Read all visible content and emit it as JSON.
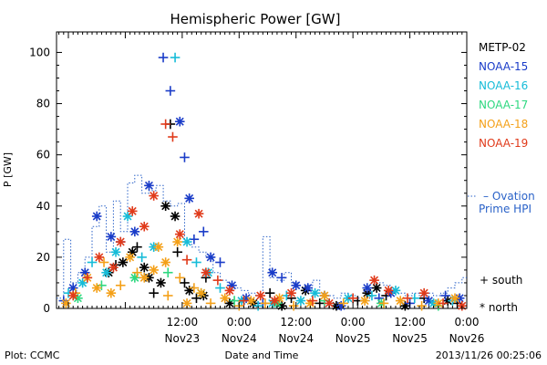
{
  "chart_data": {
    "type": "scatter",
    "title": "Hemispheric Power [GW]",
    "ylabel": "P [GW]",
    "xlabel": "Date and Time",
    "ylim": [
      0,
      108
    ],
    "yticks": [
      0,
      20,
      40,
      60,
      80,
      100
    ],
    "xlim": [
      -14.5,
      72
    ],
    "xticks": [
      {
        "x": 12,
        "time": "12:00",
        "date": "Nov23"
      },
      {
        "x": 24,
        "time": "0:00",
        "date": "Nov24"
      },
      {
        "x": 36,
        "time": "12:00",
        "date": "Nov24"
      },
      {
        "x": 48,
        "time": "0:00",
        "date": "Nov25"
      },
      {
        "x": 60,
        "time": "12:00",
        "date": "Nov25"
      },
      {
        "x": 72,
        "time": "0:00",
        "date": "Nov26"
      }
    ],
    "legend": [
      {
        "name": "METP-02",
        "color": "#000000"
      },
      {
        "name": "NOAA-15",
        "color": "#1a3cc8"
      },
      {
        "name": "NOAA-16",
        "color": "#16bcd8"
      },
      {
        "name": "NOAA-17",
        "color": "#2ed880"
      },
      {
        "name": "NOAA-18",
        "color": "#f4a018"
      },
      {
        "name": "NOAA-19",
        "color": "#e03a1a"
      }
    ],
    "ovation_label": [
      "Ovation",
      "Prime HPI"
    ],
    "ovation_color": "#2a62c8",
    "hemisphere_legend": [
      {
        "symbol": "+",
        "label": "south"
      },
      {
        "symbol": "*",
        "label": "north"
      }
    ],
    "series": [
      {
        "name": "METP-02",
        "color": "#000000",
        "points": [
          [
            -3.5,
            14,
            "*"
          ],
          [
            -2,
            17,
            "+"
          ],
          [
            -0.5,
            18,
            "*"
          ],
          [
            1.5,
            22,
            "*"
          ],
          [
            2.5,
            24,
            "+"
          ],
          [
            4,
            16,
            "*"
          ],
          [
            5,
            12,
            "*"
          ],
          [
            6,
            6,
            "+"
          ],
          [
            7.5,
            10,
            "*"
          ],
          [
            8.5,
            40,
            "*"
          ],
          [
            9.5,
            72,
            "+"
          ],
          [
            10.5,
            36,
            "*"
          ],
          [
            11,
            22,
            "+"
          ],
          [
            12.5,
            10,
            "+"
          ],
          [
            13.5,
            7,
            "*"
          ],
          [
            15,
            4,
            "+"
          ],
          [
            16.5,
            5,
            "*"
          ],
          [
            17,
            12,
            "+"
          ],
          [
            22,
            2,
            "*"
          ],
          [
            27,
            2,
            "*"
          ],
          [
            30.5,
            6,
            "+"
          ],
          [
            33,
            1,
            "*"
          ],
          [
            35,
            4,
            "+"
          ],
          [
            38,
            7,
            "*"
          ],
          [
            41,
            2,
            "+"
          ],
          [
            44.5,
            1,
            "*"
          ],
          [
            49,
            3,
            "+"
          ],
          [
            51,
            6,
            "*"
          ],
          [
            53,
            8,
            "*"
          ],
          [
            55,
            5,
            "+"
          ],
          [
            59,
            1,
            "*"
          ],
          [
            63,
            4,
            "+"
          ],
          [
            68,
            3,
            "*"
          ],
          [
            70,
            2,
            "+"
          ]
        ]
      },
      {
        "name": "NOAA-15",
        "color": "#1a3cc8",
        "points": [
          [
            -13,
            3,
            "+"
          ],
          [
            -11,
            8,
            "*"
          ],
          [
            -8.5,
            14,
            "*"
          ],
          [
            -6,
            36,
            "*"
          ],
          [
            -3,
            28,
            "*"
          ],
          [
            -1,
            26,
            "+"
          ],
          [
            2,
            30,
            "*"
          ],
          [
            5,
            48,
            "*"
          ],
          [
            8,
            98,
            "+"
          ],
          [
            9.5,
            85,
            "+"
          ],
          [
            11.5,
            73,
            "*"
          ],
          [
            12.5,
            59,
            "+"
          ],
          [
            13.5,
            43,
            "*"
          ],
          [
            14.5,
            27,
            "+"
          ],
          [
            16.5,
            30,
            "+"
          ],
          [
            18,
            20,
            "*"
          ],
          [
            20,
            18,
            "+"
          ],
          [
            22.5,
            9,
            "*"
          ],
          [
            25.5,
            4,
            "*"
          ],
          [
            29,
            2,
            "+"
          ],
          [
            31,
            14,
            "*"
          ],
          [
            33,
            12,
            "+"
          ],
          [
            36,
            9,
            "*"
          ],
          [
            38.5,
            8,
            "*"
          ],
          [
            42,
            5,
            "+"
          ],
          [
            45.5,
            1,
            "*"
          ],
          [
            51,
            8,
            "*"
          ],
          [
            53.5,
            4,
            "+"
          ],
          [
            56,
            6,
            "*"
          ],
          [
            60,
            2,
            "+"
          ],
          [
            64,
            3,
            "*"
          ],
          [
            67.5,
            5,
            "+"
          ],
          [
            70.5,
            4,
            "*"
          ]
        ]
      },
      {
        "name": "NOAA-16",
        "color": "#16bcd8",
        "points": [
          [
            -12,
            6,
            "+"
          ],
          [
            -9,
            10,
            "*"
          ],
          [
            -7,
            18,
            "+"
          ],
          [
            -4,
            14,
            "*"
          ],
          [
            -2,
            22,
            "*"
          ],
          [
            0.5,
            36,
            "*"
          ],
          [
            3.5,
            20,
            "+"
          ],
          [
            6,
            24,
            "*"
          ],
          [
            10.5,
            98,
            "+"
          ],
          [
            13,
            26,
            "*"
          ],
          [
            15,
            18,
            "+"
          ],
          [
            17.5,
            14,
            "*"
          ],
          [
            20,
            8,
            "+"
          ],
          [
            24.5,
            3,
            "*"
          ],
          [
            28,
            1,
            "+"
          ],
          [
            31,
            2,
            "*"
          ],
          [
            34,
            5,
            "+"
          ],
          [
            37,
            3,
            "*"
          ],
          [
            40,
            6,
            "*"
          ],
          [
            43,
            2,
            "+"
          ],
          [
            47,
            4,
            "*"
          ],
          [
            52,
            5,
            "+"
          ],
          [
            57,
            7,
            "*"
          ],
          [
            61,
            4,
            "+"
          ],
          [
            65,
            2,
            "*"
          ],
          [
            69,
            3,
            "+"
          ]
        ]
      },
      {
        "name": "NOAA-17",
        "color": "#2ed880",
        "points": [
          [
            -10,
            4,
            "*"
          ],
          [
            -5,
            9,
            "+"
          ],
          [
            2,
            12,
            "*"
          ],
          [
            9,
            14,
            "+"
          ],
          [
            16,
            6,
            "*"
          ],
          [
            23,
            3,
            "+"
          ],
          [
            32,
            2,
            "*"
          ],
          [
            42,
            3,
            "+"
          ],
          [
            54,
            2,
            "*"
          ],
          [
            66,
            1,
            "+"
          ]
        ]
      },
      {
        "name": "NOAA-18",
        "color": "#f4a018",
        "points": [
          [
            -12.5,
            2,
            "*"
          ],
          [
            -10.5,
            6,
            "+"
          ],
          [
            -8,
            12,
            "*"
          ],
          [
            -6,
            8,
            "*"
          ],
          [
            -4.5,
            18,
            "+"
          ],
          [
            -3,
            6,
            "*"
          ],
          [
            -1,
            9,
            "+"
          ],
          [
            1,
            20,
            "*"
          ],
          [
            2.5,
            14,
            "+"
          ],
          [
            4,
            12,
            "*"
          ],
          [
            6,
            15,
            "*"
          ],
          [
            7,
            24,
            "*"
          ],
          [
            8.5,
            18,
            "*"
          ],
          [
            9,
            5,
            "+"
          ],
          [
            11,
            26,
            "*"
          ],
          [
            11.5,
            12,
            "+"
          ],
          [
            13,
            2,
            "*"
          ],
          [
            14.5,
            8,
            "+"
          ],
          [
            16,
            6,
            "*"
          ],
          [
            18,
            2,
            "+"
          ],
          [
            21,
            4,
            "*"
          ],
          [
            24,
            1,
            "+"
          ],
          [
            26.5,
            3,
            "*"
          ],
          [
            29.5,
            2,
            "+"
          ],
          [
            32.5,
            4,
            "*"
          ],
          [
            35.5,
            1,
            "+"
          ],
          [
            39,
            2,
            "*"
          ],
          [
            42,
            5,
            "*"
          ],
          [
            46,
            2,
            "+"
          ],
          [
            50.5,
            3,
            "*"
          ],
          [
            54.5,
            2,
            "+"
          ],
          [
            58,
            3,
            "*"
          ],
          [
            62.5,
            1,
            "+"
          ],
          [
            66,
            2,
            "*"
          ],
          [
            69.5,
            4,
            "*"
          ]
        ]
      },
      {
        "name": "NOAA-19",
        "color": "#e03a1a",
        "points": [
          [
            -11,
            5,
            "*"
          ],
          [
            -8,
            12,
            "+"
          ],
          [
            -5.5,
            20,
            "*"
          ],
          [
            -2.5,
            16,
            "*"
          ],
          [
            -1,
            26,
            "*"
          ],
          [
            1.5,
            38,
            "*"
          ],
          [
            4,
            32,
            "*"
          ],
          [
            6,
            44,
            "*"
          ],
          [
            8.5,
            72,
            "+"
          ],
          [
            10,
            67,
            "+"
          ],
          [
            11.5,
            29,
            "*"
          ],
          [
            13,
            19,
            "+"
          ],
          [
            15.5,
            37,
            "*"
          ],
          [
            17,
            14,
            "*"
          ],
          [
            19.5,
            11,
            "+"
          ],
          [
            22,
            7,
            "*"
          ],
          [
            25,
            3,
            "+"
          ],
          [
            28.5,
            5,
            "*"
          ],
          [
            31.5,
            3,
            "*"
          ],
          [
            35,
            6,
            "*"
          ],
          [
            39.5,
            3,
            "+"
          ],
          [
            43,
            2,
            "*"
          ],
          [
            48,
            4,
            "+"
          ],
          [
            52.5,
            11,
            "*"
          ],
          [
            55.5,
            7,
            "*"
          ],
          [
            59.5,
            4,
            "+"
          ],
          [
            63,
            6,
            "*"
          ],
          [
            67,
            2,
            "+"
          ],
          [
            71,
            1,
            "*"
          ]
        ]
      }
    ],
    "ovation_hpi": [
      [
        -14.5,
        4
      ],
      [
        -13,
        27
      ],
      [
        -11.5,
        10
      ],
      [
        -10,
        14
      ],
      [
        -8.5,
        20
      ],
      [
        -7,
        32
      ],
      [
        -5.5,
        40
      ],
      [
        -4,
        22
      ],
      [
        -2.5,
        42
      ],
      [
        -1,
        30
      ],
      [
        0.5,
        49
      ],
      [
        2,
        52
      ],
      [
        3.5,
        45
      ],
      [
        5,
        46
      ],
      [
        6.5,
        48
      ],
      [
        8,
        42
      ],
      [
        9.5,
        40
      ],
      [
        11,
        41
      ],
      [
        12.5,
        26
      ],
      [
        14,
        24
      ],
      [
        15.5,
        22
      ],
      [
        17,
        20
      ],
      [
        18.5,
        14
      ],
      [
        20,
        11
      ],
      [
        21.5,
        9
      ],
      [
        23,
        8
      ],
      [
        24.5,
        7
      ],
      [
        26,
        6
      ],
      [
        27.5,
        5
      ],
      [
        29,
        28
      ],
      [
        30.5,
        12
      ],
      [
        32,
        11
      ],
      [
        33.5,
        14
      ],
      [
        35,
        10
      ],
      [
        36.5,
        8
      ],
      [
        38,
        9
      ],
      [
        39.5,
        11
      ],
      [
        41,
        6
      ],
      [
        42.5,
        5
      ],
      [
        44,
        4
      ],
      [
        45.5,
        6
      ],
      [
        47,
        5
      ],
      [
        48.5,
        4
      ],
      [
        50,
        3
      ],
      [
        51.5,
        8
      ],
      [
        53,
        10
      ],
      [
        54.5,
        9
      ],
      [
        56,
        7
      ],
      [
        57.5,
        6
      ],
      [
        59,
        5
      ],
      [
        60.5,
        6
      ],
      [
        62,
        5
      ],
      [
        63.5,
        6
      ],
      [
        65,
        5
      ],
      [
        66.5,
        6
      ],
      [
        68,
        8
      ],
      [
        69.5,
        10
      ],
      [
        71,
        12
      ],
      [
        72,
        12
      ]
    ]
  },
  "footer": {
    "plot_credit": "Plot: CCMC",
    "timestamp": "2013/11/26 00:25:06"
  }
}
